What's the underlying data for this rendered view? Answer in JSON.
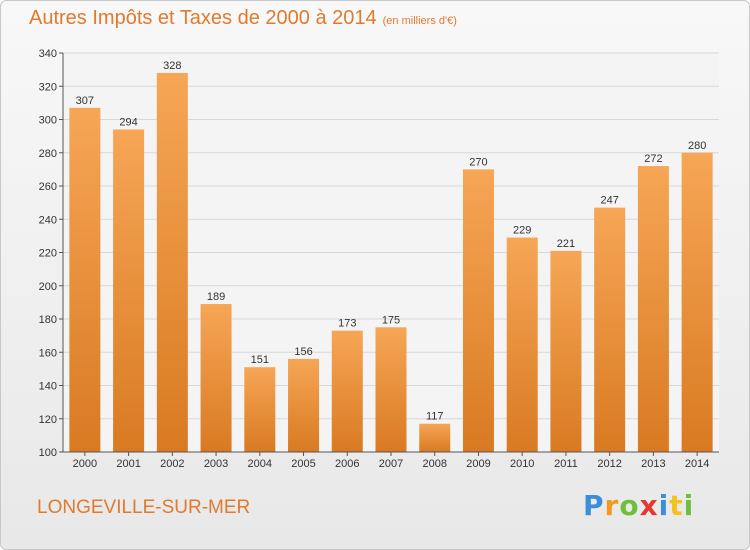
{
  "chart_data": {
    "type": "bar",
    "title": "Autres Impôts et Taxes de 2000 à 2014",
    "subtitle": "(en milliers d'€)",
    "categories": [
      "2000",
      "2001",
      "2002",
      "2003",
      "2004",
      "2005",
      "2006",
      "2007",
      "2008",
      "2009",
      "2010",
      "2011",
      "2012",
      "2013",
      "2014"
    ],
    "values": [
      307,
      294,
      328,
      189,
      151,
      156,
      173,
      175,
      117,
      270,
      229,
      221,
      247,
      272,
      280
    ],
    "ylim": [
      100,
      340
    ],
    "yticks": [
      100,
      120,
      140,
      160,
      180,
      200,
      220,
      240,
      260,
      280,
      300,
      320,
      340
    ],
    "grid": true,
    "bar_color": "#f0913a",
    "xlabel": "",
    "ylabel": ""
  },
  "footer": {
    "city": "LONGEVILLE-SUR-MER",
    "logo_letters": [
      "P",
      "r",
      "o",
      "x",
      "i",
      "t",
      "i"
    ],
    "logo_colors": [
      "#3a8fd8",
      "#f29a1e",
      "#6fbe3c",
      "#e8372e",
      "#3a8fd8",
      "#f2c21e",
      "#6fbe3c"
    ]
  },
  "colors": {
    "accent": "#e07a2e"
  }
}
